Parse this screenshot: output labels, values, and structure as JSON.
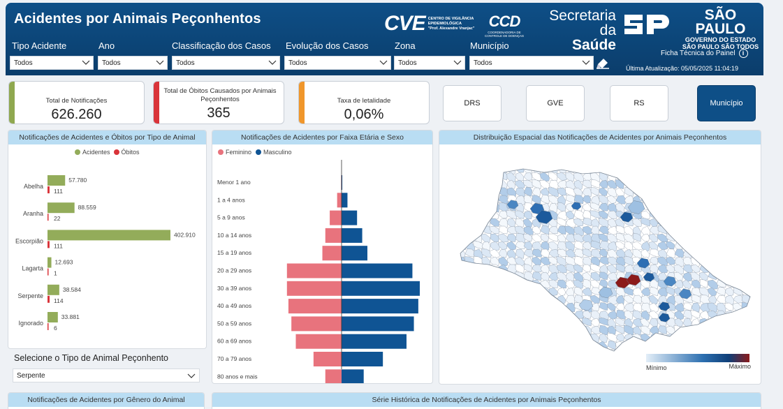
{
  "header": {
    "title": "Acidentes por Animais Peçonhentos",
    "logos": {
      "cve_mark": "CVE",
      "cve_text": [
        "CENTRO DE VIGILÂNCIA",
        "EPIDEMIOLÓGICA",
        "\"Prof. Alexandre Vranjac\""
      ],
      "ccd_mark": "CCD",
      "ccd_text": [
        "COORDENADORIA DE",
        "CONTROLE DE DOENÇAS"
      ],
      "secretaria_line1": "Secretaria da",
      "secretaria_line2": "Saúde",
      "sp_title": "SÃO PAULO",
      "sp_line2": "GOVERNO DO ESTADO",
      "sp_line3": "SÃO PAULO SÃO TODOS"
    },
    "ficha_label": "Ficha Técnica do Painel",
    "info_icon": "i",
    "updated": "Última Atualização: 05/05/2025 11:04:19"
  },
  "filters": [
    {
      "label": "Tipo Acidente",
      "value": "Todos"
    },
    {
      "label": "Ano",
      "value": "Todos"
    },
    {
      "label": "Classificação dos Casos",
      "value": "Todos"
    },
    {
      "label": "Evolução dos Casos",
      "value": "Todos"
    },
    {
      "label": "Zona",
      "value": "Todos"
    },
    {
      "label": "Município",
      "value": "Todos"
    }
  ],
  "kpis": [
    {
      "label": "Total de Notificações",
      "value": "626.260",
      "color": "#8fa84f"
    },
    {
      "label": "Total de Óbitos Causados por Animais Peçonhentos",
      "value": "365",
      "color": "#d9343a"
    },
    {
      "label": "Taxa de letalidade",
      "value": "0,06%",
      "color": "#f0962b"
    }
  ],
  "toggles": [
    {
      "label": "DRS",
      "active": false
    },
    {
      "label": "GVE",
      "active": false
    },
    {
      "label": "RS",
      "active": false
    },
    {
      "label": "Município",
      "active": true
    }
  ],
  "panels": {
    "animal_title": "Notificações de Acidentes e Óbitos por Tipo de Animal",
    "animal_legend": [
      "Acidentes",
      "Óbitos"
    ],
    "age_title": "Notificações de Acidentes por Faixa Etária e Sexo",
    "age_legend": [
      "Feminino",
      "Masculino"
    ],
    "map_title": "Distribuição Espacial das Notificações de Acidentes por Animais Peçonhentos",
    "map_min": "Mínimo",
    "map_max": "Máximo",
    "gender_title": "Notificações de Acidentes por Gênero do Animal",
    "series_title": "Série Histórica de Notificações de Acidentes por Animais Peçonhentos"
  },
  "selector": {
    "label": "Selecione o Tipo de Animal Peçonhento",
    "value": "Serpente"
  },
  "colors": {
    "acidentes": "#93ac5a",
    "obitos": "#d9343a",
    "feminino": "#e8737d",
    "masculino": "#0f5494",
    "header": "#0e4f87"
  },
  "chart_data": [
    {
      "type": "bar",
      "orientation": "horizontal",
      "title": "Notificações de Acidentes e Óbitos por Tipo de Animal",
      "categories": [
        "Abelha",
        "Aranha",
        "Escorpião",
        "Lagarta",
        "Serpente",
        "Ignorado"
      ],
      "series": [
        {
          "name": "Acidentes",
          "values": [
            57780,
            88559,
            402910,
            12693,
            38584,
            33881
          ],
          "labels": [
            "57.780",
            "88.559",
            "402.910",
            "12.693",
            "38.584",
            "33.881"
          ]
        },
        {
          "name": "Óbitos",
          "values": [
            111,
            22,
            111,
            1,
            114,
            6
          ],
          "labels": [
            "111",
            "22",
            "111",
            "1",
            "114",
            "6"
          ]
        }
      ],
      "legend": "top"
    },
    {
      "type": "bar",
      "orientation": "horizontal-diverging",
      "title": "Notificações de Acidentes por Faixa Etária e Sexo",
      "categories": [
        "Menor 1 ano",
        "1 a 4 anos",
        "5 a 9 anos",
        "10 a 14 anos",
        "15 a 19 anos",
        "20 a 29 anos",
        "30 a 39 anos",
        "40 a 49 anos",
        "50 a 59 anos",
        "60 a 69 anos",
        "70 a 79 anos",
        "80 anos e mais"
      ],
      "series": [
        {
          "name": "Feminino",
          "values": [
            300,
            3000,
            8000,
            11000,
            13000,
            37000,
            37000,
            36000,
            34000,
            31000,
            19000,
            11000
          ]
        },
        {
          "name": "Masculino",
          "values": [
            500,
            4000,
            10500,
            14000,
            17500,
            48000,
            53000,
            52000,
            49000,
            44000,
            28000,
            15000
          ]
        }
      ],
      "legend": "top-left"
    }
  ]
}
